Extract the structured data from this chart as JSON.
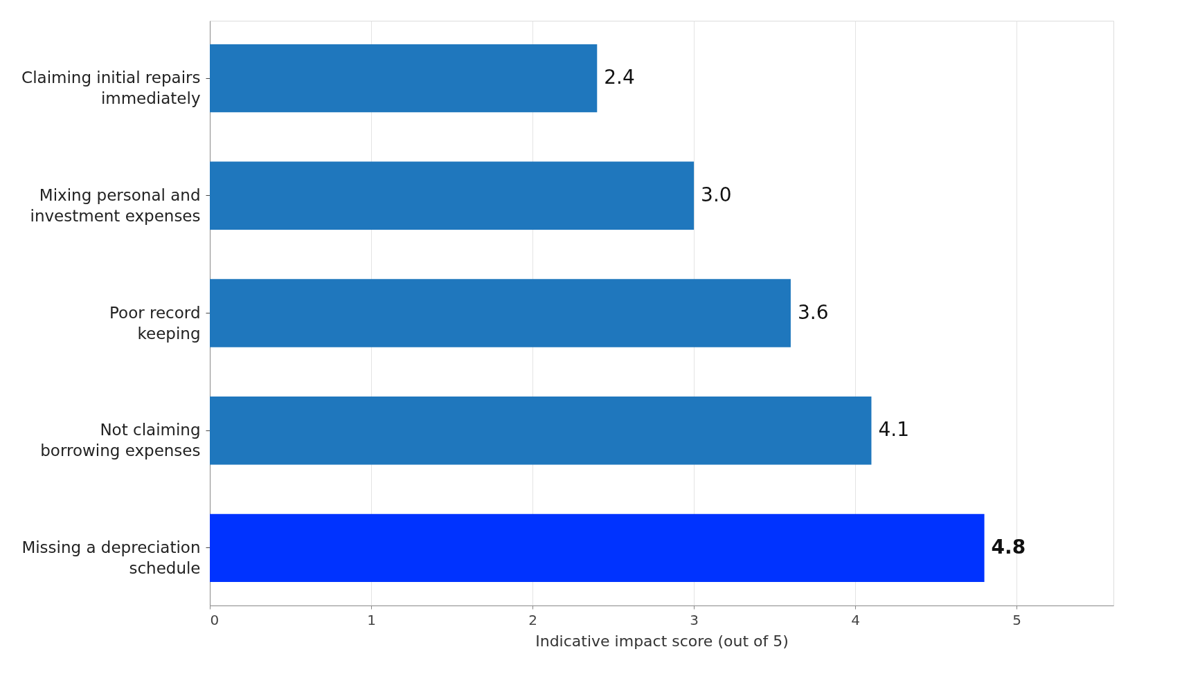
{
  "chart_data": {
    "type": "bar",
    "orientation": "horizontal",
    "xlabel": "Indicative impact score (out of 5)",
    "categories": [
      "Claiming initial repairs\nimmediately",
      "Mixing personal and\ninvestment expenses",
      "Poor record\nkeeping",
      "Not claiming\nborrowing expenses",
      "Missing a depreciation\nschedule"
    ],
    "values": [
      2.4,
      3.0,
      3.6,
      4.1,
      4.8
    ],
    "colors": [
      "#1f77bd",
      "#1f77bd",
      "#1f77bd",
      "#1f77bd",
      "#0033ff"
    ],
    "value_labels": [
      "2.4",
      "3.0",
      "3.6",
      "4.1",
      "4.8"
    ],
    "xlim": [
      0,
      5.6
    ],
    "xticks": [
      0,
      1,
      2,
      3,
      4,
      5
    ],
    "grid": "x"
  }
}
